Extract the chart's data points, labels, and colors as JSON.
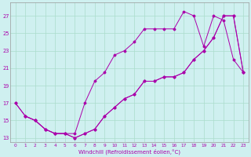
{
  "xlabel": "Windchill (Refroidissement éolien,°C)",
  "bg_color": "#cff0f0",
  "grid_color": "#aaddcc",
  "line_color": "#aa00aa",
  "xlim": [
    -0.5,
    23.5
  ],
  "ylim": [
    12.5,
    28.5
  ],
  "yticks": [
    13,
    15,
    17,
    19,
    21,
    23,
    25,
    27
  ],
  "xticks": [
    0,
    1,
    2,
    3,
    4,
    5,
    6,
    7,
    8,
    9,
    10,
    11,
    12,
    13,
    14,
    15,
    16,
    17,
    18,
    19,
    20,
    21,
    22,
    23
  ],
  "line1_x": [
    0,
    1,
    2,
    3,
    4,
    5,
    6,
    7,
    8,
    9,
    10,
    11,
    12,
    13,
    14,
    15,
    16,
    17,
    18,
    19,
    20,
    21,
    22,
    23
  ],
  "line1_y": [
    17,
    15.5,
    15,
    14,
    13.5,
    13.5,
    13,
    13.5,
    14,
    15.5,
    16.5,
    17.5,
    18,
    19.5,
    19.5,
    20,
    20,
    20.5,
    22,
    23,
    24.5,
    27,
    27,
    20.5
  ],
  "line2_x": [
    0,
    1,
    2,
    3,
    4,
    5,
    6,
    7,
    8,
    9,
    10,
    11,
    12,
    13,
    14,
    15,
    16,
    17,
    18,
    19,
    20,
    21,
    22,
    23
  ],
  "line2_y": [
    17,
    15.5,
    15,
    14,
    13.5,
    13.5,
    13.5,
    17,
    19.5,
    20.5,
    22.5,
    23,
    24,
    25.5,
    25.5,
    25.5,
    25.5,
    27.5,
    27,
    23.5,
    27,
    26.5,
    22,
    20.5
  ],
  "line3_x": [
    1,
    2,
    3,
    4,
    5,
    6,
    7,
    8,
    9,
    10,
    11,
    12,
    13,
    14,
    15,
    16,
    17,
    18,
    19,
    20,
    21,
    22,
    23
  ],
  "line3_y": [
    15.5,
    15,
    14,
    13.5,
    13.5,
    13,
    13.5,
    14,
    15.5,
    16.5,
    17.5,
    18,
    19.5,
    19.5,
    20,
    20,
    20.5,
    22,
    23,
    24.5,
    27,
    27,
    20.5
  ]
}
